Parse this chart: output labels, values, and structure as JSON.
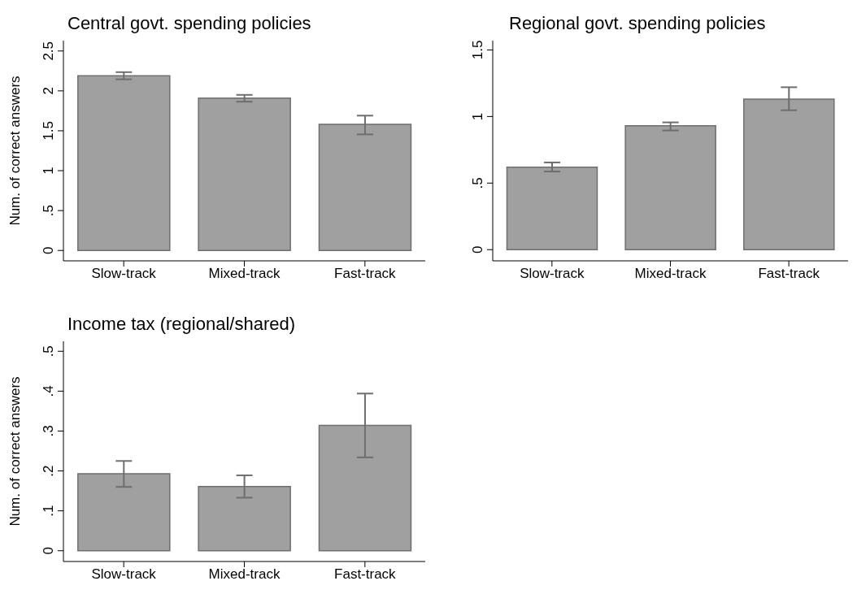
{
  "chart_data": [
    {
      "type": "bar",
      "title": "Central govt. spending policies",
      "ylabel": "Num. of correct answers",
      "categories": [
        "Slow-track",
        "Mixed-track",
        "Fast-track"
      ],
      "values": [
        2.19,
        1.91,
        1.58
      ],
      "errors": [
        [
          2.145,
          2.235
        ],
        [
          1.865,
          1.95
        ],
        [
          1.455,
          1.69
        ]
      ],
      "color": "#a0a0a0",
      "ylim": [
        -0.13,
        2.63
      ],
      "yticks": [
        0,
        {
          "value": 0.5,
          "label": ".5"
        },
        1,
        1.5,
        2,
        2.5
      ],
      "grid": false
    },
    {
      "type": "bar",
      "title": "Regional govt. spending policies",
      "categories": [
        "Slow-track",
        "Mixed-track",
        "Fast-track"
      ],
      "values": [
        0.62,
        0.93,
        1.13
      ],
      "errors": [
        [
          0.587,
          0.655
        ],
        [
          0.895,
          0.956
        ],
        [
          1.047,
          1.22
        ]
      ],
      "color": "#a0a0a0",
      "ylim": [
        -0.084,
        1.57
      ],
      "yticks": [
        0,
        {
          "value": 0.5,
          "label": ".5"
        },
        1,
        1.5
      ],
      "grid": false
    },
    {
      "type": "bar",
      "title": "Income tax (regional/shared)",
      "ylabel": "Num. of correct answers",
      "categories": [
        "Slow-track",
        "Mixed-track",
        "Fast-track"
      ],
      "values": [
        0.193,
        0.161,
        0.314
      ],
      "errors": [
        [
          0.16,
          0.225
        ],
        [
          0.133,
          0.189
        ],
        [
          0.234,
          0.394
        ]
      ],
      "color": "#a0a0a0",
      "ylim": [
        -0.027,
        0.525
      ],
      "yticks": [
        0,
        {
          "value": 0.1,
          "label": ".1"
        },
        {
          "value": 0.2,
          "label": ".2"
        },
        {
          "value": 0.3,
          "label": ".3"
        },
        {
          "value": 0.4,
          "label": ".4"
        },
        {
          "value": 0.5,
          "label": ".5"
        }
      ],
      "grid": false
    }
  ]
}
